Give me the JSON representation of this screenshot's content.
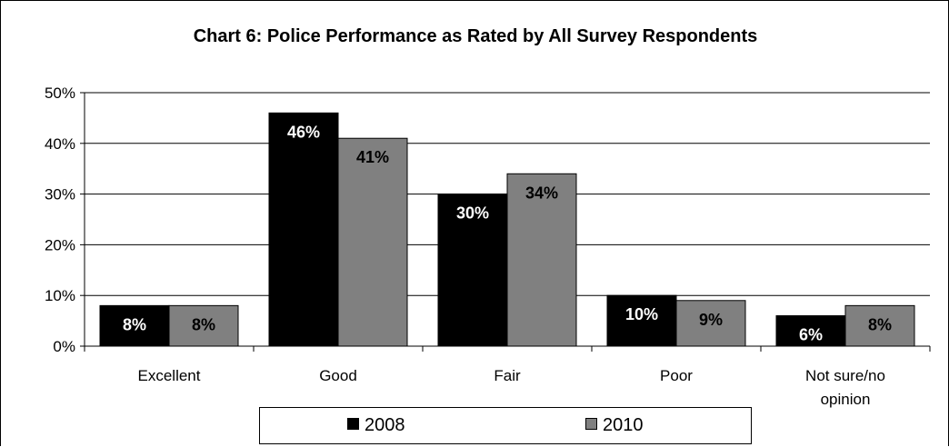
{
  "chart_data": {
    "type": "bar",
    "title": "Chart 6: Police Performance as Rated by All Survey Respondents",
    "categories": [
      "Excellent",
      "Good",
      "Fair",
      "Poor",
      "Not sure/no opinion"
    ],
    "series": [
      {
        "name": "2008",
        "color": "#000000",
        "label_color": "#ffffff",
        "values": [
          8,
          46,
          30,
          10,
          6
        ],
        "labels": [
          "8%",
          "46%",
          "30%",
          "10%",
          "6%"
        ]
      },
      {
        "name": "2010",
        "color": "#808080",
        "label_color": "#000000",
        "values": [
          8,
          41,
          34,
          9,
          8
        ],
        "labels": [
          "8%",
          "41%",
          "34%",
          "9%",
          "8%"
        ]
      }
    ],
    "ylim": [
      0,
      50
    ],
    "yticks": [
      0,
      10,
      20,
      30,
      40,
      50
    ],
    "ytick_labels": [
      "0%",
      "10%",
      "20%",
      "30%",
      "40%",
      "50%"
    ],
    "grid": true,
    "legend_position": "bottom"
  }
}
